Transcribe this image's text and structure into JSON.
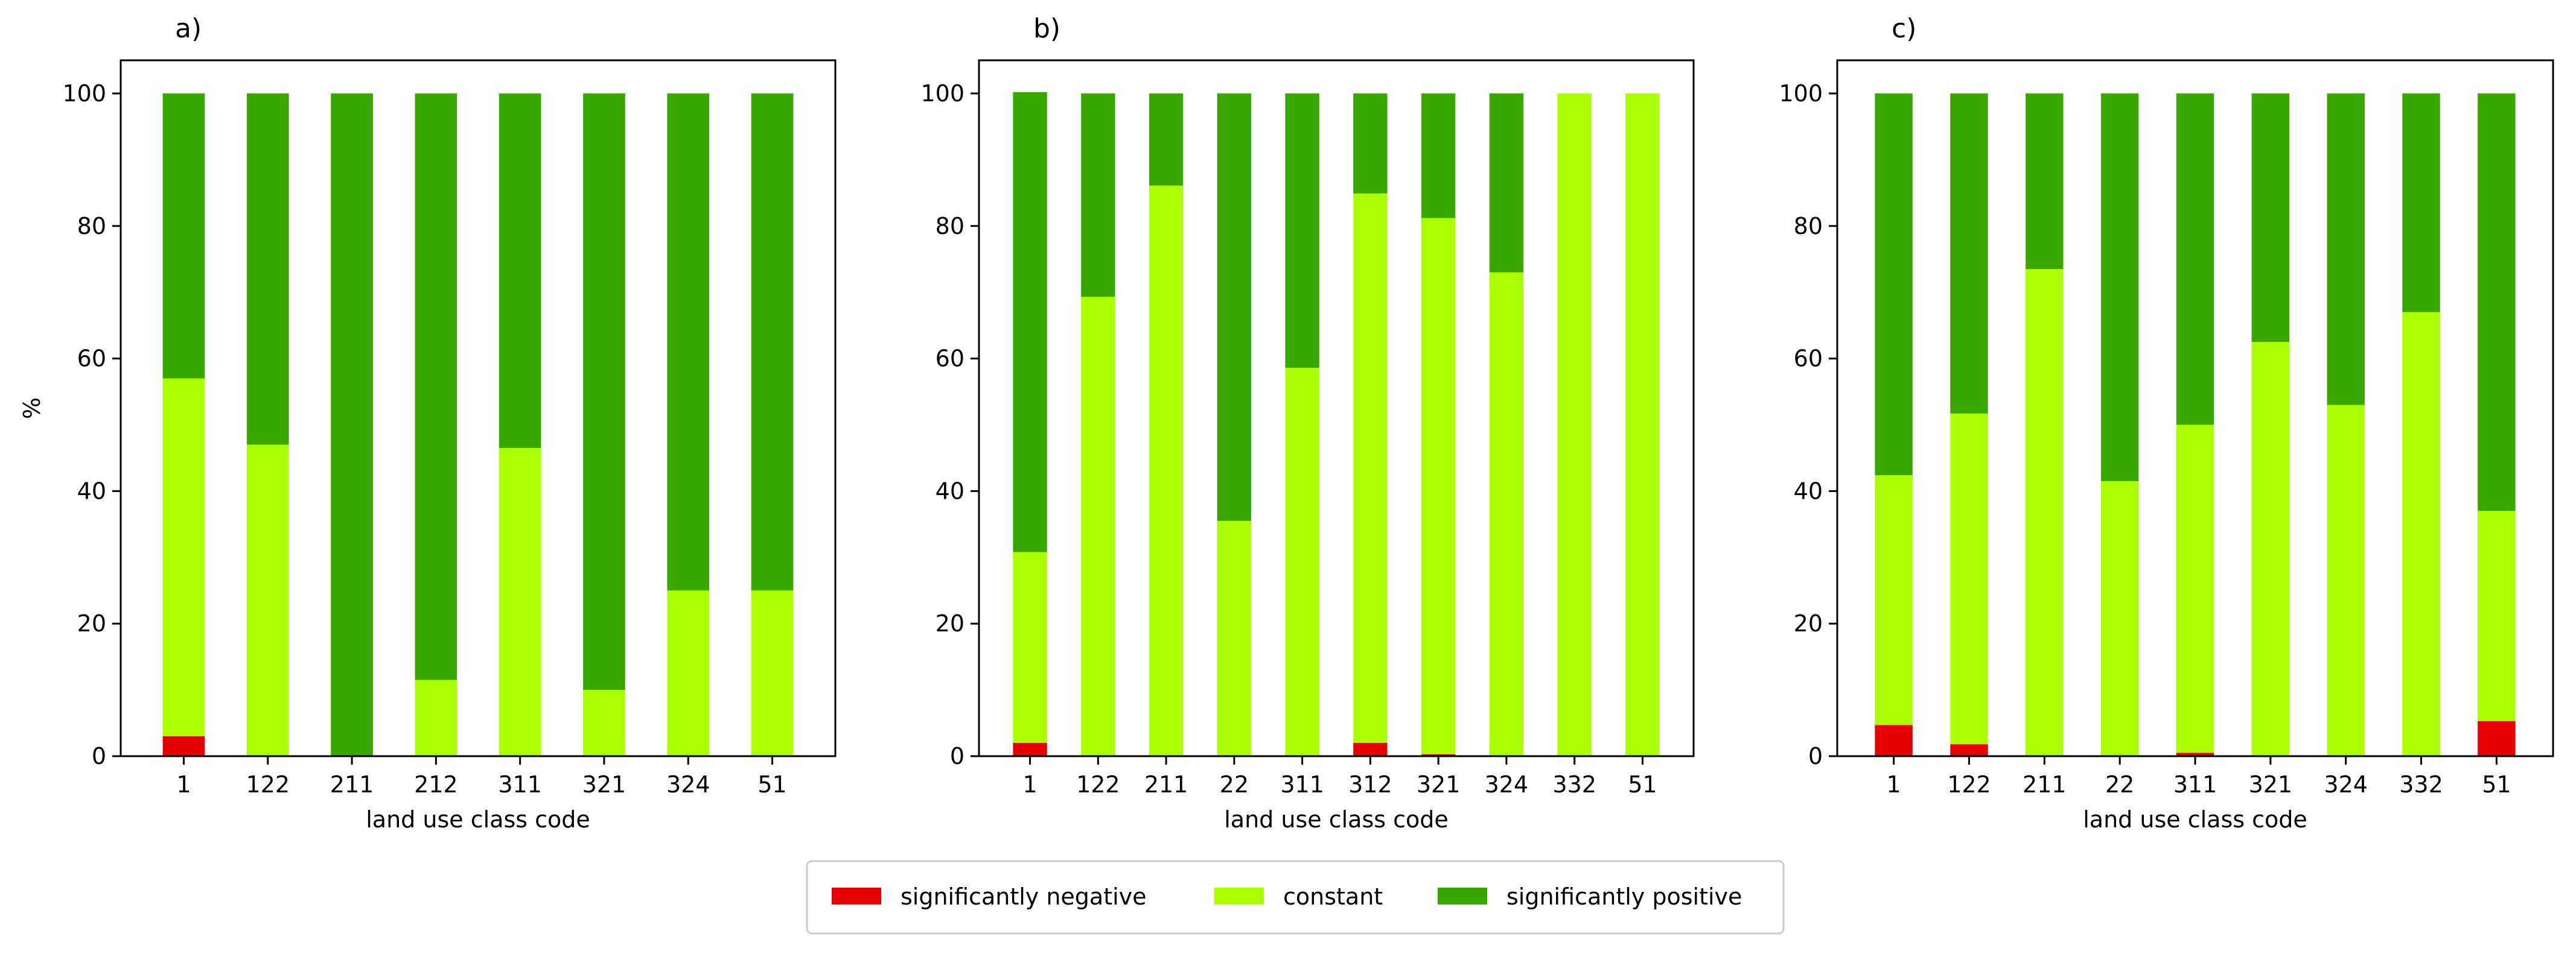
{
  "colors": {
    "negative": "#e60000",
    "constant": "#aaff00",
    "positive": "#38a800"
  },
  "legend": {
    "items": [
      {
        "key": "negative",
        "label": "significantly negative"
      },
      {
        "key": "constant",
        "label": "constant"
      },
      {
        "key": "positive",
        "label": "significantly positive"
      }
    ]
  },
  "chart_data": [
    {
      "type": "bar",
      "stacked": true,
      "panel_label": "a)",
      "xlabel": "land use class code",
      "ylabel": "%",
      "ylim": [
        0,
        105
      ],
      "yticks": [
        0,
        20,
        40,
        60,
        80,
        100
      ],
      "categories": [
        "1",
        "122",
        "211",
        "212",
        "311",
        "321",
        "324",
        "51"
      ],
      "series": [
        {
          "name": "significantly negative",
          "key": "negative",
          "values": [
            3,
            0,
            0,
            0,
            0,
            0,
            0,
            0
          ]
        },
        {
          "name": "constant",
          "key": "constant",
          "values": [
            54,
            47,
            0,
            11.5,
            46.5,
            10,
            25,
            25
          ]
        },
        {
          "name": "significantly positive",
          "key": "positive",
          "values": [
            43,
            53,
            100,
            88.5,
            53.5,
            90,
            75,
            75
          ]
        }
      ]
    },
    {
      "type": "bar",
      "stacked": true,
      "panel_label": "b)",
      "xlabel": "land use class code",
      "ylabel": "",
      "ylim": [
        0,
        105
      ],
      "yticks": [
        0,
        20,
        40,
        60,
        80,
        100
      ],
      "categories": [
        "1",
        "122",
        "211",
        "22",
        "311",
        "312",
        "321",
        "324",
        "332",
        "51"
      ],
      "series": [
        {
          "name": "significantly negative",
          "key": "negative",
          "values": [
            2,
            0,
            0,
            0,
            0,
            2,
            0.3,
            0,
            0,
            0
          ]
        },
        {
          "name": "constant",
          "key": "constant",
          "values": [
            28.8,
            69.3,
            86.1,
            35.5,
            58.6,
            82.9,
            80.9,
            73,
            100,
            100
          ]
        },
        {
          "name": "significantly positive",
          "key": "positive",
          "values": [
            69.4,
            30.7,
            13.9,
            64.5,
            41.4,
            15.1,
            18.8,
            27,
            0,
            0
          ]
        }
      ]
    },
    {
      "type": "bar",
      "stacked": true,
      "panel_label": "c)",
      "xlabel": "land use class code",
      "ylabel": "",
      "ylim": [
        0,
        105
      ],
      "yticks": [
        0,
        20,
        40,
        60,
        80,
        100
      ],
      "categories": [
        "1",
        "122",
        "211",
        "22",
        "311",
        "321",
        "324",
        "332",
        "51"
      ],
      "series": [
        {
          "name": "significantly negative",
          "key": "negative",
          "values": [
            4.7,
            1.8,
            0,
            0,
            0.5,
            0,
            0,
            0,
            5.3
          ]
        },
        {
          "name": "constant",
          "key": "constant",
          "values": [
            37.7,
            49.9,
            73.5,
            41.5,
            49.5,
            62.5,
            53,
            67,
            31.7
          ]
        },
        {
          "name": "significantly positive",
          "key": "positive",
          "values": [
            57.6,
            48.3,
            26.5,
            58.5,
            50,
            37.5,
            47,
            33,
            63
          ]
        }
      ]
    }
  ]
}
